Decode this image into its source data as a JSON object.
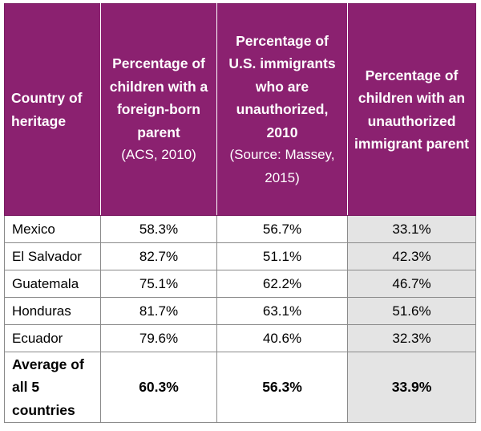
{
  "table": {
    "headers": {
      "country": "Country of heritage",
      "col2_title": "Percentage of children with a foreign-born parent",
      "col2_source": "(ACS, 2010)",
      "col3_title": "Percentage of U.S. immigrants who are unauthorized, 2010",
      "col3_source": "(Source: Massey, 2015)",
      "col4_title": "Percentage of children with an unauthorized immigrant parent"
    },
    "rows": [
      {
        "country": "Mexico",
        "foreign_born": "58.3%",
        "unauthorized": "56.7%",
        "children_unauth": "33.1%"
      },
      {
        "country": "El Salvador",
        "foreign_born": "82.7%",
        "unauthorized": "51.1%",
        "children_unauth": "42.3%"
      },
      {
        "country": "Guatemala",
        "foreign_born": "75.1%",
        "unauthorized": "62.2%",
        "children_unauth": "46.7%"
      },
      {
        "country": "Honduras",
        "foreign_born": "81.7%",
        "unauthorized": "63.1%",
        "children_unauth": "51.6%"
      },
      {
        "country": "Ecuador",
        "foreign_born": "79.6%",
        "unauthorized": "40.6%",
        "children_unauth": "32.3%"
      }
    ],
    "average": {
      "label": "Average of all 5 countries",
      "foreign_born": "60.3%",
      "unauthorized": "56.3%",
      "children_unauth": "33.9%"
    }
  },
  "colors": {
    "header_bg": "#8b2170",
    "shaded_cell": "#e4e4e4"
  }
}
